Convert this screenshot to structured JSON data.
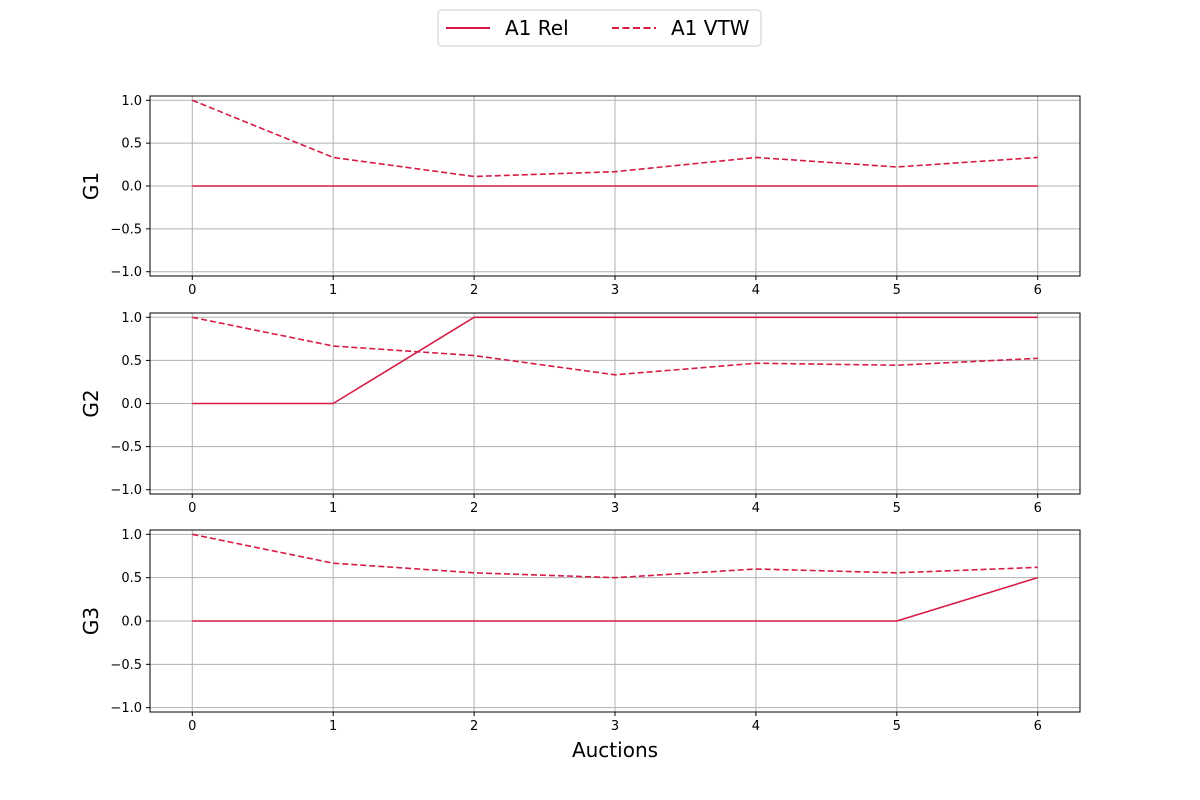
{
  "legend": {
    "placement": "top-center",
    "items": [
      {
        "label": "A1 Rel",
        "style": "solid"
      },
      {
        "label": "A1 VTW",
        "style": "dashed"
      }
    ]
  },
  "colors": {
    "series": "#d61b45",
    "grid": "#b0b0b0",
    "axis": "#000000"
  },
  "chart_data": [
    {
      "type": "line",
      "ylabel": "G1",
      "xlabel": "",
      "x": [
        0,
        1,
        2,
        3,
        4,
        5,
        6
      ],
      "xticks": [
        "0",
        "1",
        "2",
        "3",
        "4",
        "5",
        "6"
      ],
      "yticks": [
        "−1.0",
        "−0.5",
        "0.0",
        "0.5",
        "1.0"
      ],
      "xlim": [
        -0.3,
        6.3
      ],
      "ylim": [
        -1.05,
        1.05
      ],
      "grid": true,
      "series": [
        {
          "name": "A1 Rel",
          "style": "solid",
          "values": [
            0,
            0,
            0,
            0,
            0,
            0,
            0
          ]
        },
        {
          "name": "A1 VTW",
          "style": "dashed",
          "values": [
            1.0,
            0.333,
            0.111,
            0.167,
            0.333,
            0.222,
            0.333
          ]
        }
      ]
    },
    {
      "type": "line",
      "ylabel": "G2",
      "xlabel": "",
      "x": [
        0,
        1,
        2,
        3,
        4,
        5,
        6
      ],
      "xticks": [
        "0",
        "1",
        "2",
        "3",
        "4",
        "5",
        "6"
      ],
      "yticks": [
        "−1.0",
        "−0.5",
        "0.0",
        "0.5",
        "1.0"
      ],
      "xlim": [
        -0.3,
        6.3
      ],
      "ylim": [
        -1.05,
        1.05
      ],
      "grid": true,
      "series": [
        {
          "name": "A1 Rel",
          "style": "solid",
          "values": [
            0,
            0,
            1,
            1,
            1,
            1,
            1
          ]
        },
        {
          "name": "A1 VTW",
          "style": "dashed",
          "values": [
            1.0,
            0.667,
            0.556,
            0.333,
            0.467,
            0.444,
            0.524
          ]
        }
      ]
    },
    {
      "type": "line",
      "ylabel": "G3",
      "xlabel": "Auctions",
      "x": [
        0,
        1,
        2,
        3,
        4,
        5,
        6
      ],
      "xticks": [
        "0",
        "1",
        "2",
        "3",
        "4",
        "5",
        "6"
      ],
      "yticks": [
        "−1.0",
        "−0.5",
        "0.0",
        "0.5",
        "1.0"
      ],
      "xlim": [
        -0.3,
        6.3
      ],
      "ylim": [
        -1.05,
        1.05
      ],
      "grid": true,
      "series": [
        {
          "name": "A1 Rel",
          "style": "solid",
          "values": [
            0,
            0,
            0,
            0,
            0,
            0,
            0.5
          ]
        },
        {
          "name": "A1 VTW",
          "style": "dashed",
          "values": [
            1.0,
            0.667,
            0.556,
            0.5,
            0.6,
            0.556,
            0.619
          ]
        }
      ]
    }
  ]
}
